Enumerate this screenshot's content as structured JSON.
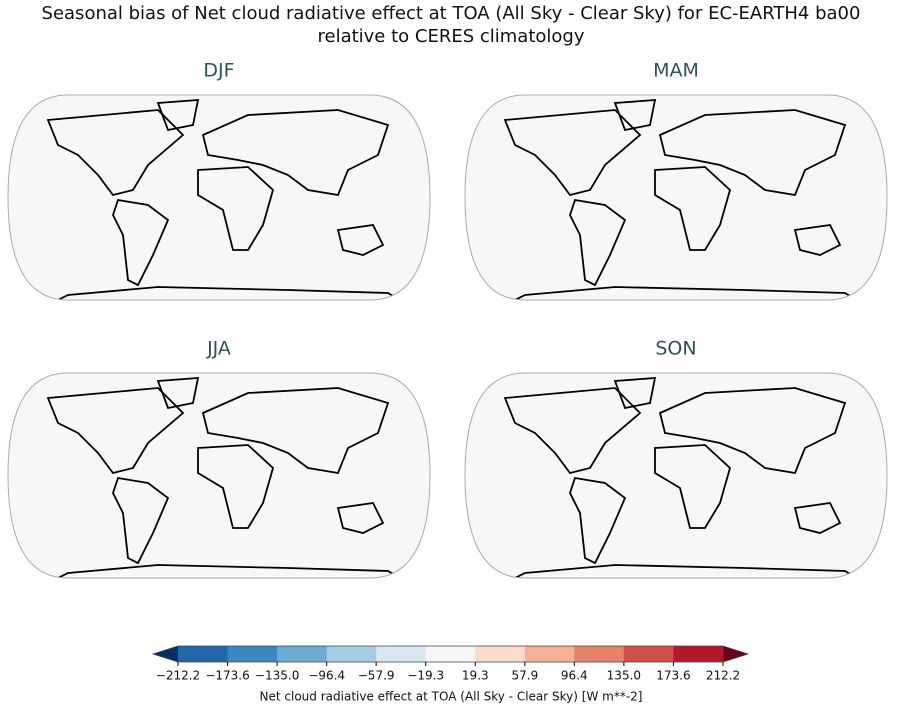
{
  "title": [
    "Seasonal bias of Net cloud radiative effect at TOA (All Sky - Clear Sky) for EC-EARTH4 ba00",
    "relative to CERES climatology"
  ],
  "panels": [
    {
      "title": "DJF"
    },
    {
      "title": "MAM"
    },
    {
      "title": "JJA"
    },
    {
      "title": "SON"
    }
  ],
  "colorbar": {
    "label": "Net cloud radiative effect at TOA (All Sky - Clear Sky) [W m**-2]",
    "ticks": [
      {
        "value": -212.2,
        "label": "−212.2"
      },
      {
        "value": -173.6,
        "label": "−173.6"
      },
      {
        "value": -135.0,
        "label": "−135.0"
      },
      {
        "value": -96.4,
        "label": "−96.4"
      },
      {
        "value": -57.9,
        "label": "−57.9"
      },
      {
        "value": -19.3,
        "label": "−19.3"
      },
      19.3,
      57.9,
      96.4,
      {
        "value": 135.0,
        "label": "135.0"
      },
      173.6,
      212.2
    ],
    "colors": [
      "#2166ac",
      "#3a87c0",
      "#6aaad3",
      "#a5cde3",
      "#d7e8f1",
      "#f7f7f7",
      "#fbdccc",
      "#f4b197",
      "#e5826a",
      "#cf4f4a",
      "#b2182b"
    ],
    "under_color": "#053061",
    "over_color": "#67001f"
  }
}
